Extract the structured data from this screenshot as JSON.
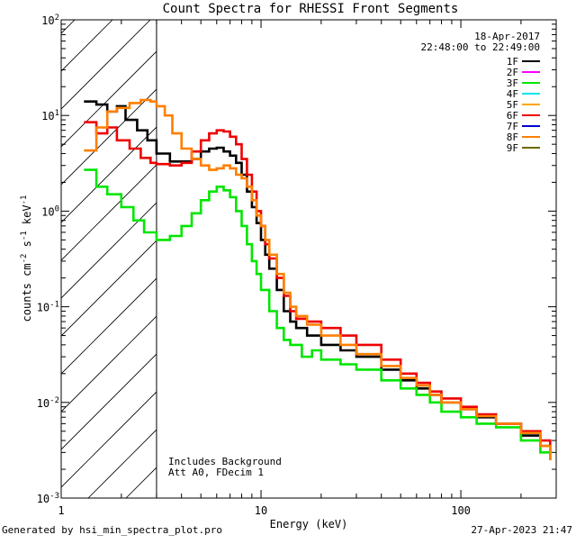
{
  "chart_data": {
    "type": "line",
    "title": "Count Spectra for RHESSI Front Segments",
    "xlabel": "Energy (keV)",
    "ylabel_html": "counts cm<tspan baseline-shift='super' font-size='9'>-2</tspan> s<tspan baseline-shift='super' font-size='9'>-1</tspan> keV<tspan baseline-shift='super' font-size='9'>-1</tspan>",
    "xscale": "log",
    "yscale": "log",
    "xlim": [
      1,
      300
    ],
    "ylim": [
      0.001,
      100
    ],
    "x_ticks": [
      {
        "v": 1,
        "label": "1"
      },
      {
        "v": 10,
        "label": "10"
      },
      {
        "v": 100,
        "label": "100"
      }
    ],
    "y_ticks": [
      {
        "exp": "-3",
        "v": 0.001
      },
      {
        "exp": "-2",
        "v": 0.01
      },
      {
        "exp": "-1",
        "v": 0.1
      },
      {
        "exp": "0",
        "v": 1
      },
      {
        "exp": "1",
        "v": 10
      },
      {
        "exp": "2",
        "v": 100
      }
    ],
    "date": "18-Apr-2017",
    "time_range": "22:48:00 to 22:49:00",
    "hatched_region": {
      "xmin": 1,
      "xmax": 3
    },
    "annotations": [
      "Includes Background",
      "Att A0, FDecim 1"
    ],
    "legend_position": "top-right",
    "series": [
      {
        "name": "1F",
        "color": "#000000",
        "points": [
          [
            1.3,
            14
          ],
          [
            1.5,
            13
          ],
          [
            1.7,
            11
          ],
          [
            1.9,
            12.5
          ],
          [
            2.1,
            9
          ],
          [
            2.4,
            7
          ],
          [
            2.7,
            5.5
          ],
          [
            3.0,
            4.0
          ],
          [
            3.5,
            3.3
          ],
          [
            4.0,
            3.3
          ],
          [
            4.5,
            3.5
          ],
          [
            5.0,
            4.2
          ],
          [
            5.5,
            4.5
          ],
          [
            6.0,
            4.6
          ],
          [
            6.5,
            4.2
          ],
          [
            7.0,
            3.8
          ],
          [
            7.5,
            3.2
          ],
          [
            8.0,
            2.4
          ],
          [
            8.5,
            1.6
          ],
          [
            9.0,
            1.1
          ],
          [
            9.5,
            0.75
          ],
          [
            10,
            0.5
          ],
          [
            10.5,
            0.35
          ],
          [
            11,
            0.25
          ],
          [
            12,
            0.15
          ],
          [
            13,
            0.09
          ],
          [
            14,
            0.07
          ],
          [
            15,
            0.06
          ],
          [
            17,
            0.05
          ],
          [
            20,
            0.04
          ],
          [
            25,
            0.035
          ],
          [
            30,
            0.03
          ],
          [
            40,
            0.022
          ],
          [
            50,
            0.017
          ],
          [
            60,
            0.014
          ],
          [
            70,
            0.012
          ],
          [
            80,
            0.01
          ],
          [
            100,
            0.0085
          ],
          [
            120,
            0.007
          ],
          [
            150,
            0.006
          ],
          [
            200,
            0.0045
          ],
          [
            250,
            0.0035
          ],
          [
            280,
            0.0025
          ]
        ]
      },
      {
        "name": "2F",
        "color": "#ff00ff",
        "points": []
      },
      {
        "name": "3F",
        "color": "#00e600",
        "points": [
          [
            1.3,
            2.7
          ],
          [
            1.5,
            1.8
          ],
          [
            1.7,
            1.5
          ],
          [
            2.0,
            1.1
          ],
          [
            2.3,
            0.8
          ],
          [
            2.6,
            0.6
          ],
          [
            3.0,
            0.5
          ],
          [
            3.5,
            0.55
          ],
          [
            4.0,
            0.7
          ],
          [
            4.5,
            0.95
          ],
          [
            5.0,
            1.3
          ],
          [
            5.5,
            1.6
          ],
          [
            6.0,
            1.8
          ],
          [
            6.5,
            1.65
          ],
          [
            7.0,
            1.4
          ],
          [
            7.5,
            1.0
          ],
          [
            8.0,
            0.7
          ],
          [
            8.5,
            0.45
          ],
          [
            9.0,
            0.3
          ],
          [
            9.5,
            0.22
          ],
          [
            10,
            0.15
          ],
          [
            11,
            0.09
          ],
          [
            12,
            0.06
          ],
          [
            13,
            0.045
          ],
          [
            14,
            0.04
          ],
          [
            16,
            0.03
          ],
          [
            18,
            0.035
          ],
          [
            20,
            0.028
          ],
          [
            25,
            0.025
          ],
          [
            30,
            0.022
          ],
          [
            40,
            0.017
          ],
          [
            50,
            0.014
          ],
          [
            60,
            0.012
          ],
          [
            70,
            0.01
          ],
          [
            80,
            0.008
          ],
          [
            100,
            0.007
          ],
          [
            120,
            0.006
          ],
          [
            150,
            0.0055
          ],
          [
            200,
            0.004
          ],
          [
            250,
            0.003
          ],
          [
            280,
            0.0025
          ]
        ]
      },
      {
        "name": "4F",
        "color": "#00e5ee",
        "points": []
      },
      {
        "name": "5F",
        "color": "#ffa500",
        "points": []
      },
      {
        "name": "6F",
        "color": "#ee0000",
        "points": [
          [
            1.3,
            8.5
          ],
          [
            1.5,
            6.5
          ],
          [
            1.7,
            7.5
          ],
          [
            1.9,
            5.5
          ],
          [
            2.2,
            4.5
          ],
          [
            2.5,
            3.6
          ],
          [
            2.8,
            3.2
          ],
          [
            3.0,
            3.1
          ],
          [
            3.5,
            3.0
          ],
          [
            4.0,
            3.2
          ],
          [
            4.5,
            4.2
          ],
          [
            5.0,
            5.5
          ],
          [
            5.5,
            6.5
          ],
          [
            6.0,
            7.0
          ],
          [
            6.5,
            6.8
          ],
          [
            7.0,
            6.0
          ],
          [
            7.5,
            5.0
          ],
          [
            8.0,
            3.5
          ],
          [
            8.5,
            2.4
          ],
          [
            9.0,
            1.6
          ],
          [
            9.5,
            1.0
          ],
          [
            10,
            0.7
          ],
          [
            10.5,
            0.45
          ],
          [
            11,
            0.32
          ],
          [
            12,
            0.2
          ],
          [
            13,
            0.13
          ],
          [
            14,
            0.09
          ],
          [
            15,
            0.075
          ],
          [
            17,
            0.07
          ],
          [
            20,
            0.06
          ],
          [
            25,
            0.05
          ],
          [
            30,
            0.04
          ],
          [
            40,
            0.028
          ],
          [
            50,
            0.02
          ],
          [
            60,
            0.016
          ],
          [
            70,
            0.013
          ],
          [
            80,
            0.011
          ],
          [
            100,
            0.009
          ],
          [
            120,
            0.0075
          ],
          [
            150,
            0.006
          ],
          [
            200,
            0.005
          ],
          [
            250,
            0.004
          ],
          [
            280,
            0.003
          ]
        ]
      },
      {
        "name": "7F",
        "color": "#0000cd",
        "points": []
      },
      {
        "name": "8F",
        "color": "#ff7f00",
        "points": [
          [
            1.3,
            4.3
          ],
          [
            1.5,
            7.5
          ],
          [
            1.7,
            11
          ],
          [
            1.9,
            12
          ],
          [
            2.2,
            13.5
          ],
          [
            2.5,
            14.5
          ],
          [
            2.8,
            14
          ],
          [
            3.0,
            12.5
          ],
          [
            3.3,
            10
          ],
          [
            3.6,
            6.5
          ],
          [
            4.0,
            4.5
          ],
          [
            4.5,
            3.5
          ],
          [
            5.0,
            3.0
          ],
          [
            5.5,
            2.7
          ],
          [
            6.0,
            2.8
          ],
          [
            6.5,
            3.0
          ],
          [
            7.0,
            2.8
          ],
          [
            7.5,
            2.4
          ],
          [
            8.0,
            2.2
          ],
          [
            8.5,
            1.8
          ],
          [
            9.0,
            1.3
          ],
          [
            9.5,
            0.9
          ],
          [
            10,
            0.7
          ],
          [
            10.5,
            0.5
          ],
          [
            11,
            0.35
          ],
          [
            12,
            0.22
          ],
          [
            13,
            0.14
          ],
          [
            14,
            0.1
          ],
          [
            15,
            0.08
          ],
          [
            17,
            0.065
          ],
          [
            20,
            0.05
          ],
          [
            25,
            0.04
          ],
          [
            30,
            0.032
          ],
          [
            40,
            0.024
          ],
          [
            50,
            0.018
          ],
          [
            60,
            0.015
          ],
          [
            70,
            0.012
          ],
          [
            80,
            0.01
          ],
          [
            100,
            0.0085
          ],
          [
            120,
            0.0072
          ],
          [
            150,
            0.006
          ],
          [
            200,
            0.0048
          ],
          [
            250,
            0.0035
          ],
          [
            280,
            0.0025
          ]
        ]
      },
      {
        "name": "9F",
        "color": "#6b6b00",
        "points": []
      }
    ]
  },
  "footer": {
    "left": "Generated by hsi_min_spectra_plot.pro",
    "right": "27-Apr-2023 21:47"
  }
}
